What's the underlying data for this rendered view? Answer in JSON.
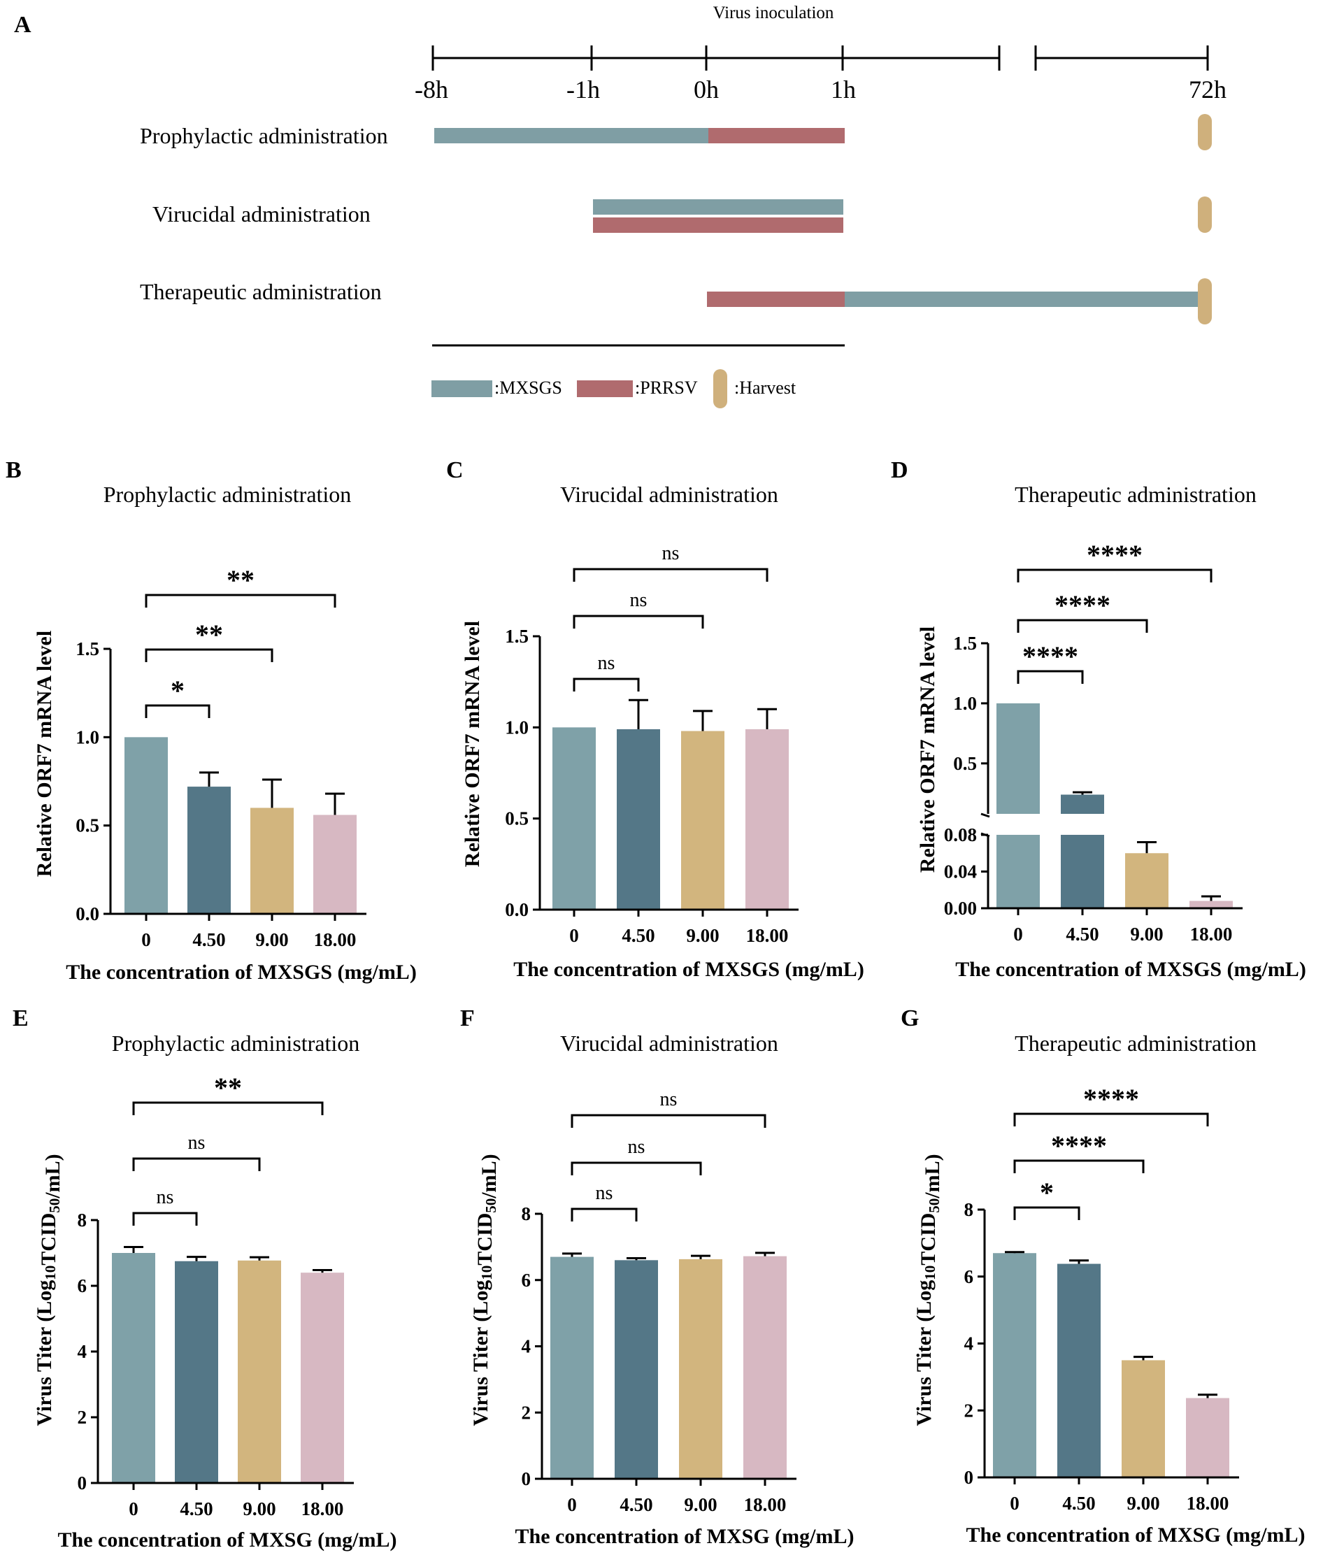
{
  "colors": {
    "c0": "#7fa1a8",
    "c1": "#547787",
    "c2": "#d2b57e",
    "c3": "#d7b8c2",
    "mxsgs": "#7f9ea4",
    "prrsv": "#b06b6e",
    "harvest": "#cfb07c"
  },
  "timeline": {
    "panel_label": "A",
    "title": "Virus inoculation",
    "ticks": [
      "-8h",
      "-1h",
      "0h",
      "1h",
      "72h"
    ],
    "rows": [
      "Prophylactic administration",
      "Virucidal administration",
      "Therapeutic administration"
    ],
    "legend": {
      "mxsgs": ":MXSGS",
      "prrsv": ":PRRSV",
      "harvest": ":Harvest"
    }
  },
  "chart_data": [
    {
      "panel": "B",
      "type": "bar",
      "title": "Prophylactic administration",
      "categories": [
        "0",
        "4.50",
        "9.00",
        "18.00"
      ],
      "values": [
        1.0,
        0.72,
        0.6,
        0.56
      ],
      "errors": [
        0,
        0.08,
        0.16,
        0.12
      ],
      "ylim": [
        0,
        1.5
      ],
      "yticks": [
        "0.0",
        "0.5",
        "1.0",
        "1.5"
      ],
      "ylabel": "Relative ORF7 mRNA level",
      "xlabel": "The concentration of MXSGS (mg/mL)",
      "significance": [
        {
          "from": 0,
          "to": 1,
          "label": "*"
        },
        {
          "from": 0,
          "to": 2,
          "label": "**"
        },
        {
          "from": 0,
          "to": 3,
          "label": "**"
        }
      ]
    },
    {
      "panel": "C",
      "type": "bar",
      "title": "Virucidal administration",
      "categories": [
        "0",
        "4.50",
        "9.00",
        "18.00"
      ],
      "values": [
        1.0,
        0.99,
        0.98,
        0.99
      ],
      "errors": [
        0,
        0.16,
        0.11,
        0.11
      ],
      "ylim": [
        0,
        1.5
      ],
      "yticks": [
        "0.0",
        "0.5",
        "1.0",
        "1.5"
      ],
      "ylabel": "Relative ORF7 mRNA level",
      "xlabel": "The concentration of MXSGS (mg/mL)",
      "significance": [
        {
          "from": 0,
          "to": 1,
          "label": "ns"
        },
        {
          "from": 0,
          "to": 2,
          "label": "ns"
        },
        {
          "from": 0,
          "to": 3,
          "label": "ns"
        }
      ]
    },
    {
      "panel": "D",
      "type": "bar",
      "title": "Therapeutic administration",
      "broken_axis": true,
      "categories": [
        "0",
        "4.50",
        "9.00",
        "18.00"
      ],
      "values": [
        1.0,
        0.24,
        0.06,
        0.008
      ],
      "errors": [
        0,
        0.02,
        0.012,
        0.005
      ],
      "ylim_lower": [
        0,
        0.08
      ],
      "ylim_upper": [
        0.08,
        1.5
      ],
      "yticks_lower": [
        "0.00",
        "0.04",
        "0.08"
      ],
      "yticks_upper": [
        "0.5",
        "1.0",
        "1.5"
      ],
      "ylabel": "Relative ORF7 mRNA level",
      "xlabel": "The concentration of MXSGS (mg/mL)",
      "significance": [
        {
          "from": 0,
          "to": 1,
          "label": "****"
        },
        {
          "from": 0,
          "to": 2,
          "label": "****"
        },
        {
          "from": 0,
          "to": 3,
          "label": "****"
        }
      ]
    },
    {
      "panel": "E",
      "type": "bar",
      "title": "Prophylactic administration",
      "categories": [
        "0",
        "4.50",
        "9.00",
        "18.00"
      ],
      "values": [
        7.0,
        6.75,
        6.77,
        6.4
      ],
      "errors": [
        0.18,
        0.13,
        0.1,
        0.08
      ],
      "ylim": [
        0,
        8
      ],
      "yticks": [
        "0",
        "2",
        "4",
        "6",
        "8"
      ],
      "ylabel": "Virus Titer (Log10TCID50/mL)",
      "xlabel": "The concentration of MXSG (mg/mL)",
      "significance": [
        {
          "from": 0,
          "to": 1,
          "label": "ns"
        },
        {
          "from": 0,
          "to": 2,
          "label": "ns"
        },
        {
          "from": 0,
          "to": 3,
          "label": "**"
        }
      ]
    },
    {
      "panel": "F",
      "type": "bar",
      "title": "Virucidal administration",
      "categories": [
        "0",
        "4.50",
        "9.00",
        "18.00"
      ],
      "values": [
        6.7,
        6.6,
        6.63,
        6.72
      ],
      "errors": [
        0.1,
        0.06,
        0.1,
        0.1
      ],
      "ylim": [
        0,
        8
      ],
      "yticks": [
        "0",
        "2",
        "4",
        "6",
        "8"
      ],
      "ylabel": "Virus Titer (Log10TCID50/mL)",
      "xlabel": "The concentration of MXSG (mg/mL)",
      "significance": [
        {
          "from": 0,
          "to": 1,
          "label": "ns"
        },
        {
          "from": 0,
          "to": 2,
          "label": "ns"
        },
        {
          "from": 0,
          "to": 3,
          "label": "ns"
        }
      ]
    },
    {
      "panel": "G",
      "type": "bar",
      "title": "Therapeutic administration",
      "categories": [
        "0",
        "4.50",
        "9.00",
        "18.00"
      ],
      "values": [
        6.7,
        6.38,
        3.5,
        2.37
      ],
      "errors": [
        0.03,
        0.1,
        0.1,
        0.1
      ],
      "ylim": [
        0,
        8
      ],
      "yticks": [
        "0",
        "2",
        "4",
        "6",
        "8"
      ],
      "ylabel": "Virus Titer (Log10TCID50/mL)",
      "xlabel": "The concentration of MXSG (mg/mL)",
      "significance": [
        {
          "from": 0,
          "to": 1,
          "label": "*"
        },
        {
          "from": 0,
          "to": 2,
          "label": "****"
        },
        {
          "from": 0,
          "to": 3,
          "label": "****"
        }
      ]
    }
  ]
}
